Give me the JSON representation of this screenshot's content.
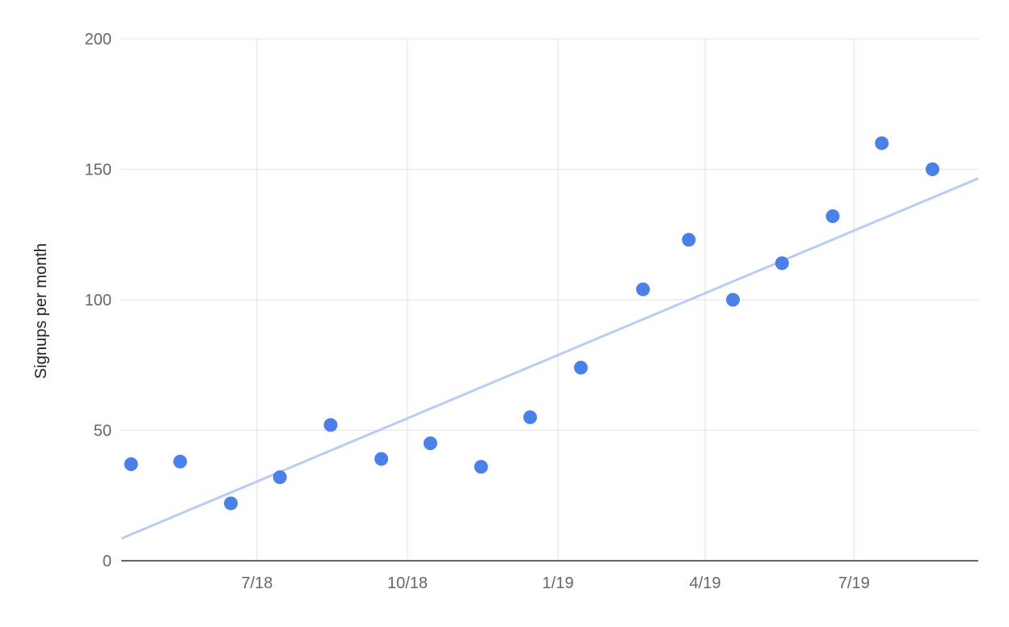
{
  "chart_data": {
    "type": "scatter",
    "title": "",
    "xlabel": "",
    "ylabel": "Signups per month",
    "ylim": [
      0,
      200
    ],
    "xlim": [
      "2018-04-09",
      "2019-09-15"
    ],
    "y_ticks": [
      0,
      50,
      100,
      150,
      200
    ],
    "x_ticks": [
      {
        "label": "7/18",
        "date": "2018-07-01"
      },
      {
        "label": "10/18",
        "date": "2018-10-01"
      },
      {
        "label": "1/19",
        "date": "2019-01-01"
      },
      {
        "label": "4/19",
        "date": "2019-04-01"
      },
      {
        "label": "7/19",
        "date": "2019-07-01"
      }
    ],
    "grid": true,
    "legend": "none",
    "series": [
      {
        "points": [
          {
            "x": "2018-04-15",
            "y": 37
          },
          {
            "x": "2018-05-15",
            "y": 38
          },
          {
            "x": "2018-06-15",
            "y": 22
          },
          {
            "x": "2018-07-15",
            "y": 32
          },
          {
            "x": "2018-08-15",
            "y": 52
          },
          {
            "x": "2018-09-15",
            "y": 39
          },
          {
            "x": "2018-10-15",
            "y": 45
          },
          {
            "x": "2018-11-15",
            "y": 36
          },
          {
            "x": "2018-12-15",
            "y": 55
          },
          {
            "x": "2019-01-15",
            "y": 74
          },
          {
            "x": "2019-02-22",
            "y": 104
          },
          {
            "x": "2019-03-22",
            "y": 123
          },
          {
            "x": "2019-04-18",
            "y": 100
          },
          {
            "x": "2019-05-18",
            "y": 114
          },
          {
            "x": "2019-06-18",
            "y": 132
          },
          {
            "x": "2019-07-18",
            "y": 160
          },
          {
            "x": "2019-08-18",
            "y": 150
          }
        ]
      }
    ],
    "trendline": {
      "start": {
        "x": "2018-04-09",
        "y": 8.5
      },
      "end": {
        "x": "2019-09-15",
        "y": 146.5
      }
    },
    "colors": {
      "points": "#4a80e8",
      "trendline": "#b8cdf3",
      "grid": "#e6e6e6",
      "axis": "#333333",
      "text": "#666666"
    }
  }
}
